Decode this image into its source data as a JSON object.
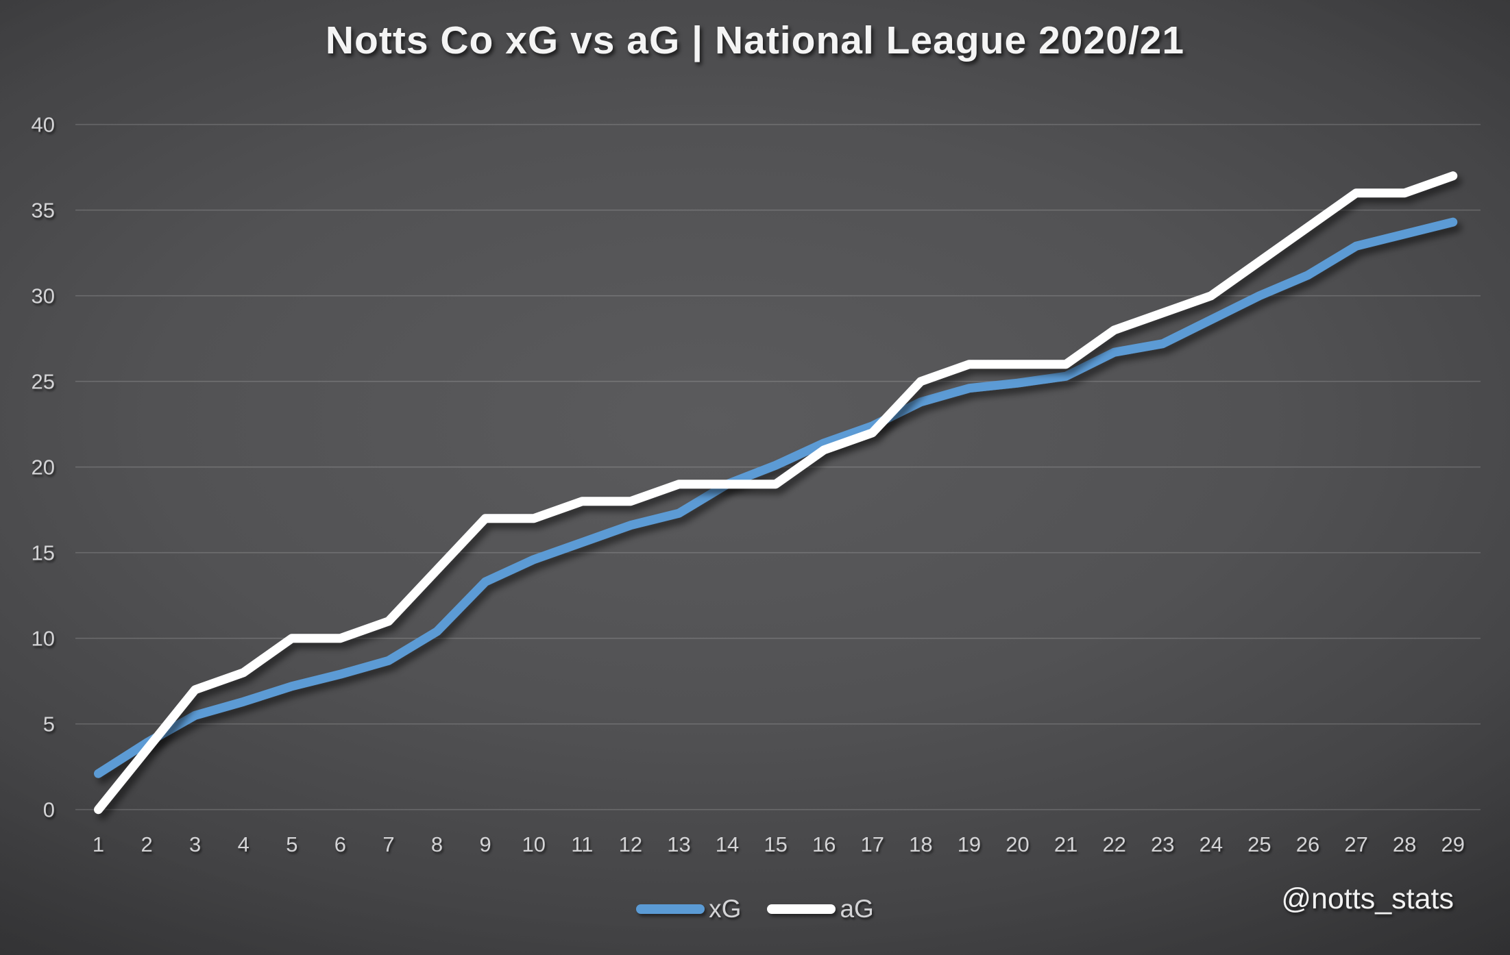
{
  "watermark": "@notts_stats",
  "chart_data": {
    "type": "line",
    "title": "Notts Co xG vs aG | National League 2020/21",
    "xlabel": "",
    "ylabel": "",
    "x": [
      "1",
      "2",
      "3",
      "4",
      "5",
      "6",
      "7",
      "8",
      "9",
      "10",
      "11",
      "12",
      "13",
      "14",
      "15",
      "16",
      "17",
      "18",
      "19",
      "20",
      "21",
      "22",
      "23",
      "24",
      "25",
      "26",
      "27",
      "28",
      "29"
    ],
    "series": [
      {
        "name": "xG",
        "color": "#5B9BD5",
        "values": [
          2.1,
          3.9,
          5.5,
          6.3,
          7.2,
          7.9,
          8.7,
          10.4,
          13.3,
          14.6,
          15.6,
          16.6,
          17.3,
          19.0,
          20.1,
          21.4,
          22.4,
          23.8,
          24.6,
          24.9,
          25.3,
          26.7,
          27.2,
          28.6,
          30.0,
          31.2,
          32.9,
          33.6,
          34.3
        ]
      },
      {
        "name": "aG",
        "color": "#FFFFFF",
        "values": [
          0,
          3.5,
          7,
          8,
          10,
          10,
          11,
          14,
          17,
          17,
          18,
          18,
          19,
          19,
          19,
          21,
          22,
          25,
          26,
          26,
          26,
          28,
          29,
          30,
          32,
          34,
          36,
          36,
          37
        ]
      }
    ],
    "ylim": [
      0,
      40
    ],
    "yticks": [
      0,
      5,
      10,
      15,
      20,
      25,
      30,
      35,
      40
    ],
    "grid": true,
    "legend_position": "bottom",
    "background_center_color": "#58585a",
    "background_corner_color": "#272729",
    "tick_label_color": "#d4d4d6"
  }
}
